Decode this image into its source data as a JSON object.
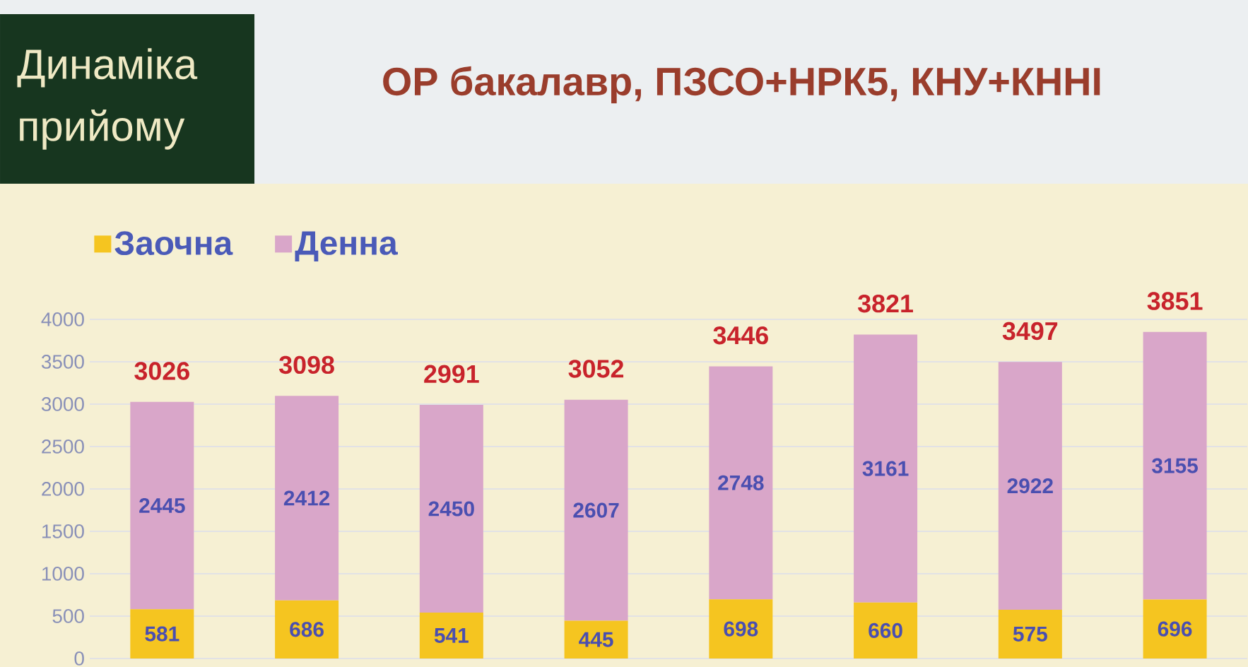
{
  "chart_data": {
    "type": "bar",
    "title": "ОР бакалавр, ПЗСО+НРК5, КНУ+КННІ",
    "annotations": [
      "Динаміка прийому"
    ],
    "categories": [
      null,
      null,
      null,
      null,
      null,
      null,
      null,
      null
    ],
    "series": [
      {
        "name": "Заочна",
        "color": "#f5c520",
        "values": [
          581,
          686,
          541,
          445,
          698,
          660,
          575,
          696
        ]
      },
      {
        "name": "Денна",
        "color": "#d9a6c9",
        "values": [
          2445,
          2412,
          2450,
          2607,
          2748,
          3161,
          2922,
          3155
        ]
      }
    ],
    "stacked": true,
    "data_labels": true,
    "totals": [
      "3026",
      "3098",
      "2991",
      "3052",
      "3446",
      "3821",
      "3497",
      "3851"
    ],
    "ylim": [
      0,
      4000
    ],
    "yticks": [
      0,
      500,
      1000,
      1500,
      2000,
      2500,
      3000,
      3500,
      4000
    ],
    "grid": "y",
    "legend": "top left",
    "tick_labels": "y"
  }
}
